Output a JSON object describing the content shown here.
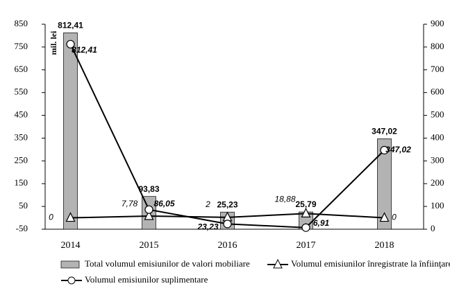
{
  "chart_data": {
    "type": "bar_line",
    "ylabel": "mil. lei",
    "categories": [
      "2014",
      "2015",
      "2016",
      "2017",
      "2018"
    ],
    "ylim": [
      -50,
      850
    ],
    "yticks": [
      -50,
      50,
      150,
      250,
      350,
      450,
      550,
      650,
      750,
      850
    ],
    "y2lim": [
      0,
      900
    ],
    "y2ticks": [
      0,
      100,
      200,
      300,
      400,
      500,
      600,
      700,
      800,
      900
    ],
    "series": [
      {
        "name": "Total volumul emisiunilor de valori mobiliare",
        "type": "bar",
        "color": "#b3b3b3",
        "values": [
          812.41,
          93.83,
          25.23,
          25.79,
          347.02
        ],
        "value_labels": [
          "812,41",
          "93,83",
          "25,23",
          "25,79",
          "347,02"
        ]
      },
      {
        "name": "Volumul emisiunilor înregistrate la înfiinţare",
        "type": "line",
        "marker": "triangle",
        "color": "#000000",
        "values": [
          0,
          7.78,
          2,
          18.88,
          0
        ],
        "value_labels": [
          "0",
          "7,78",
          "2",
          "18,88",
          "0"
        ]
      },
      {
        "name": "Volumul emisiunilor suplimentare",
        "type": "line",
        "marker": "circle",
        "color": "#000000",
        "axis": "y2",
        "values": [
          812.41,
          86.05,
          23.23,
          6.91,
          347.02
        ],
        "value_labels": [
          "812,41",
          "86,05",
          "23,23",
          "6,91",
          "347,02"
        ]
      }
    ]
  }
}
